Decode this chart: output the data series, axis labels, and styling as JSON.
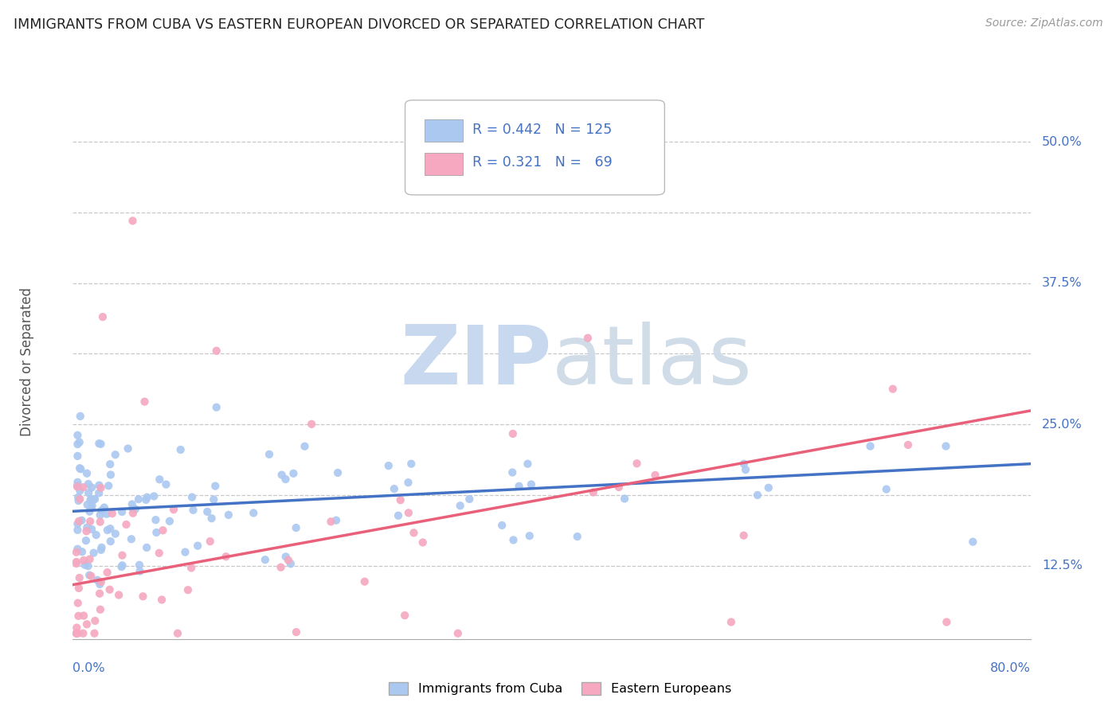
{
  "title": "IMMIGRANTS FROM CUBA VS EASTERN EUROPEAN DIVORCED OR SEPARATED CORRELATION CHART",
  "source": "Source: ZipAtlas.com",
  "ylabel": "Divorced or Separated",
  "xlim": [
    0.0,
    0.8
  ],
  "ylim": [
    0.06,
    0.55
  ],
  "watermark": "ZIPatlas",
  "cuba_color": "#aac8f0",
  "ee_color": "#f5a8c0",
  "cuba_line_color": "#4472c4",
  "ee_line_color": "#e8607a",
  "background_color": "#ffffff",
  "grid_color": "#c8c8c8",
  "title_color": "#222222",
  "axis_label_color": "#4472c4",
  "watermark_color": "#dce6f0",
  "y_grid_vals": [
    0.125,
    0.1875,
    0.25,
    0.3125,
    0.375,
    0.4375,
    0.5
  ],
  "y_tick_vals": [
    0.125,
    0.25,
    0.375,
    0.5
  ],
  "y_tick_labels": [
    "12.5%",
    "25.0%",
    "37.5%",
    "50.0%"
  ],
  "cuba_R": 0.442,
  "cuba_N": 125,
  "ee_R": 0.321,
  "ee_N": 69,
  "cuba_line_start_y": 0.173,
  "cuba_line_end_y": 0.215,
  "ee_line_start_y": 0.108,
  "ee_line_end_y": 0.262
}
